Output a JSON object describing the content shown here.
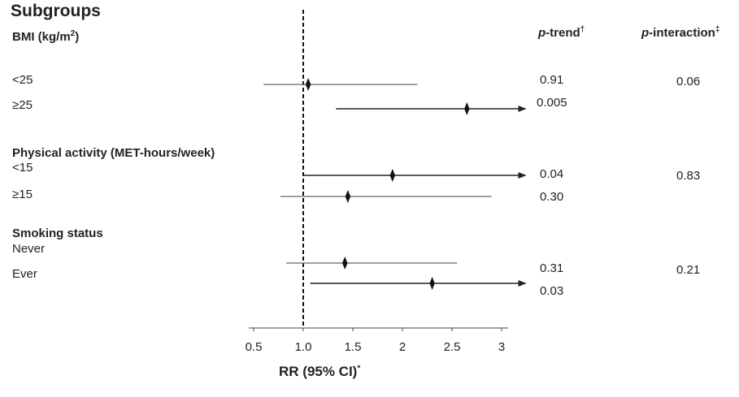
{
  "title": "Subgroups",
  "columns": {
    "p_trend_italic": "p",
    "p_trend_rest": "-trend",
    "p_trend_mark": "†",
    "p_interaction_italic": "p",
    "p_interaction_rest": "-interaction",
    "p_interaction_mark": "‡"
  },
  "groups": [
    {
      "label": "BMI (kg/m",
      "label_sup": "2",
      "label_end": ")",
      "p_interaction": "0.06",
      "rows": [
        {
          "label": "<25",
          "p_trend": "0.91"
        },
        {
          "label": "≥25",
          "p_trend": "0.005"
        }
      ]
    },
    {
      "label": "Physical activity (MET-hours/week)",
      "p_interaction": "0.83",
      "rows": [
        {
          "label": "<15",
          "p_trend": "0.04"
        },
        {
          "label": "≥15",
          "p_trend": "0.30"
        }
      ]
    },
    {
      "label": "Smoking status",
      "p_interaction": "0.21",
      "rows": [
        {
          "label": "Never",
          "p_trend": "0.31"
        },
        {
          "label": "Ever",
          "p_trend": "0.03"
        }
      ]
    }
  ],
  "x_axis": {
    "label": "RR (95% CI)",
    "label_mark": "*"
  },
  "chart_data": {
    "type": "forest",
    "xlabel": "RR (95% CI)*",
    "xlim": [
      0.5,
      3.2
    ],
    "xticks": [
      0.5,
      1.0,
      1.5,
      2,
      2.5,
      3
    ],
    "xtick_labels": [
      "0.5",
      "1.0",
      "1.5",
      "2",
      "2.5",
      "3"
    ],
    "reference_line": 1.0,
    "rows": [
      {
        "group": "BMI (kg/m2)",
        "label": "<25",
        "rr": 1.05,
        "ci": [
          0.6,
          2.15
        ],
        "arrow": false
      },
      {
        "group": "BMI (kg/m2)",
        "label": "≥25",
        "rr": 2.65,
        "ci": [
          1.33,
          3.2
        ],
        "arrow": true
      },
      {
        "group": "Physical activity (MET-hours/week)",
        "label": "<15",
        "rr": 1.9,
        "ci": [
          1.0,
          3.2
        ],
        "arrow": true
      },
      {
        "group": "Physical activity (MET-hours/week)",
        "label": "≥15",
        "rr": 1.45,
        "ci": [
          0.77,
          2.9
        ],
        "arrow": false
      },
      {
        "group": "Smoking status",
        "label": "Never",
        "rr": 1.42,
        "ci": [
          0.83,
          2.55
        ],
        "arrow": false
      },
      {
        "group": "Smoking status",
        "label": "Ever",
        "rr": 2.3,
        "ci": [
          1.07,
          3.2
        ],
        "arrow": true
      }
    ]
  }
}
